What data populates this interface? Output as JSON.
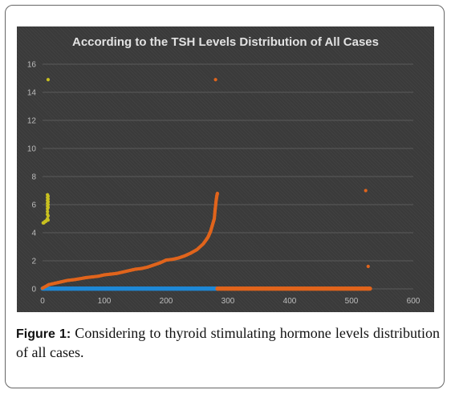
{
  "chart_data": {
    "type": "scatter",
    "title": "According to  the TSH Levels Distribution of All Cases",
    "xlim": [
      0,
      600
    ],
    "ylim": [
      0,
      16
    ],
    "x_ticks": [
      0,
      100,
      200,
      300,
      400,
      500,
      600
    ],
    "y_ticks": [
      0,
      2,
      4,
      6,
      8,
      10,
      12,
      14,
      16
    ],
    "grid": "horizontal",
    "legend": "none",
    "series": [
      {
        "color": "#c8c020",
        "x": [
          1,
          2,
          3,
          4,
          5,
          6,
          7,
          8,
          8,
          8,
          8,
          8,
          8,
          8,
          8,
          8,
          9,
          9,
          9,
          9,
          9,
          9,
          9,
          9
        ],
        "y": [
          4.7,
          4.7,
          4.75,
          4.8,
          4.8,
          4.85,
          4.9,
          5.0,
          5.3,
          5.5,
          5.7,
          5.9,
          6.1,
          6.3,
          6.5,
          6.7,
          6.0,
          6.2,
          6.4,
          6.6,
          14.9,
          4.9,
          5.2,
          5.8
        ]
      },
      {
        "color": "#1f88d6",
        "description_range": [
          0,
          283
        ],
        "y_constant": 0.02
      },
      {
        "color": "#e0641c",
        "x": [
          0,
          10,
          20,
          30,
          40,
          50,
          60,
          70,
          80,
          90,
          100,
          110,
          120,
          130,
          140,
          150,
          160,
          170,
          180,
          190,
          200,
          210,
          220,
          230,
          240,
          250,
          260,
          265,
          268,
          270,
          272,
          274,
          276,
          278,
          279,
          280,
          281,
          282,
          283,
          280
        ],
        "y": [
          0.05,
          0.3,
          0.4,
          0.5,
          0.6,
          0.65,
          0.72,
          0.8,
          0.85,
          0.9,
          1.0,
          1.05,
          1.1,
          1.2,
          1.3,
          1.4,
          1.45,
          1.55,
          1.7,
          1.85,
          2.05,
          2.1,
          2.2,
          2.35,
          2.55,
          2.8,
          3.2,
          3.5,
          3.7,
          3.9,
          4.1,
          4.4,
          4.7,
          5.0,
          5.5,
          5.9,
          6.3,
          6.6,
          6.8,
          14.9
        ]
      },
      {
        "color": "#e0641c",
        "description_range": [
          283,
          530
        ],
        "y_constant": 0.02,
        "outliers_x": [
          523,
          527
        ],
        "outliers_y": [
          7.0,
          1.6
        ]
      }
    ]
  },
  "caption": {
    "label": "Figure 1:",
    "text": " Considering to thyroid stimulating hormone levels distribution of all cases."
  }
}
